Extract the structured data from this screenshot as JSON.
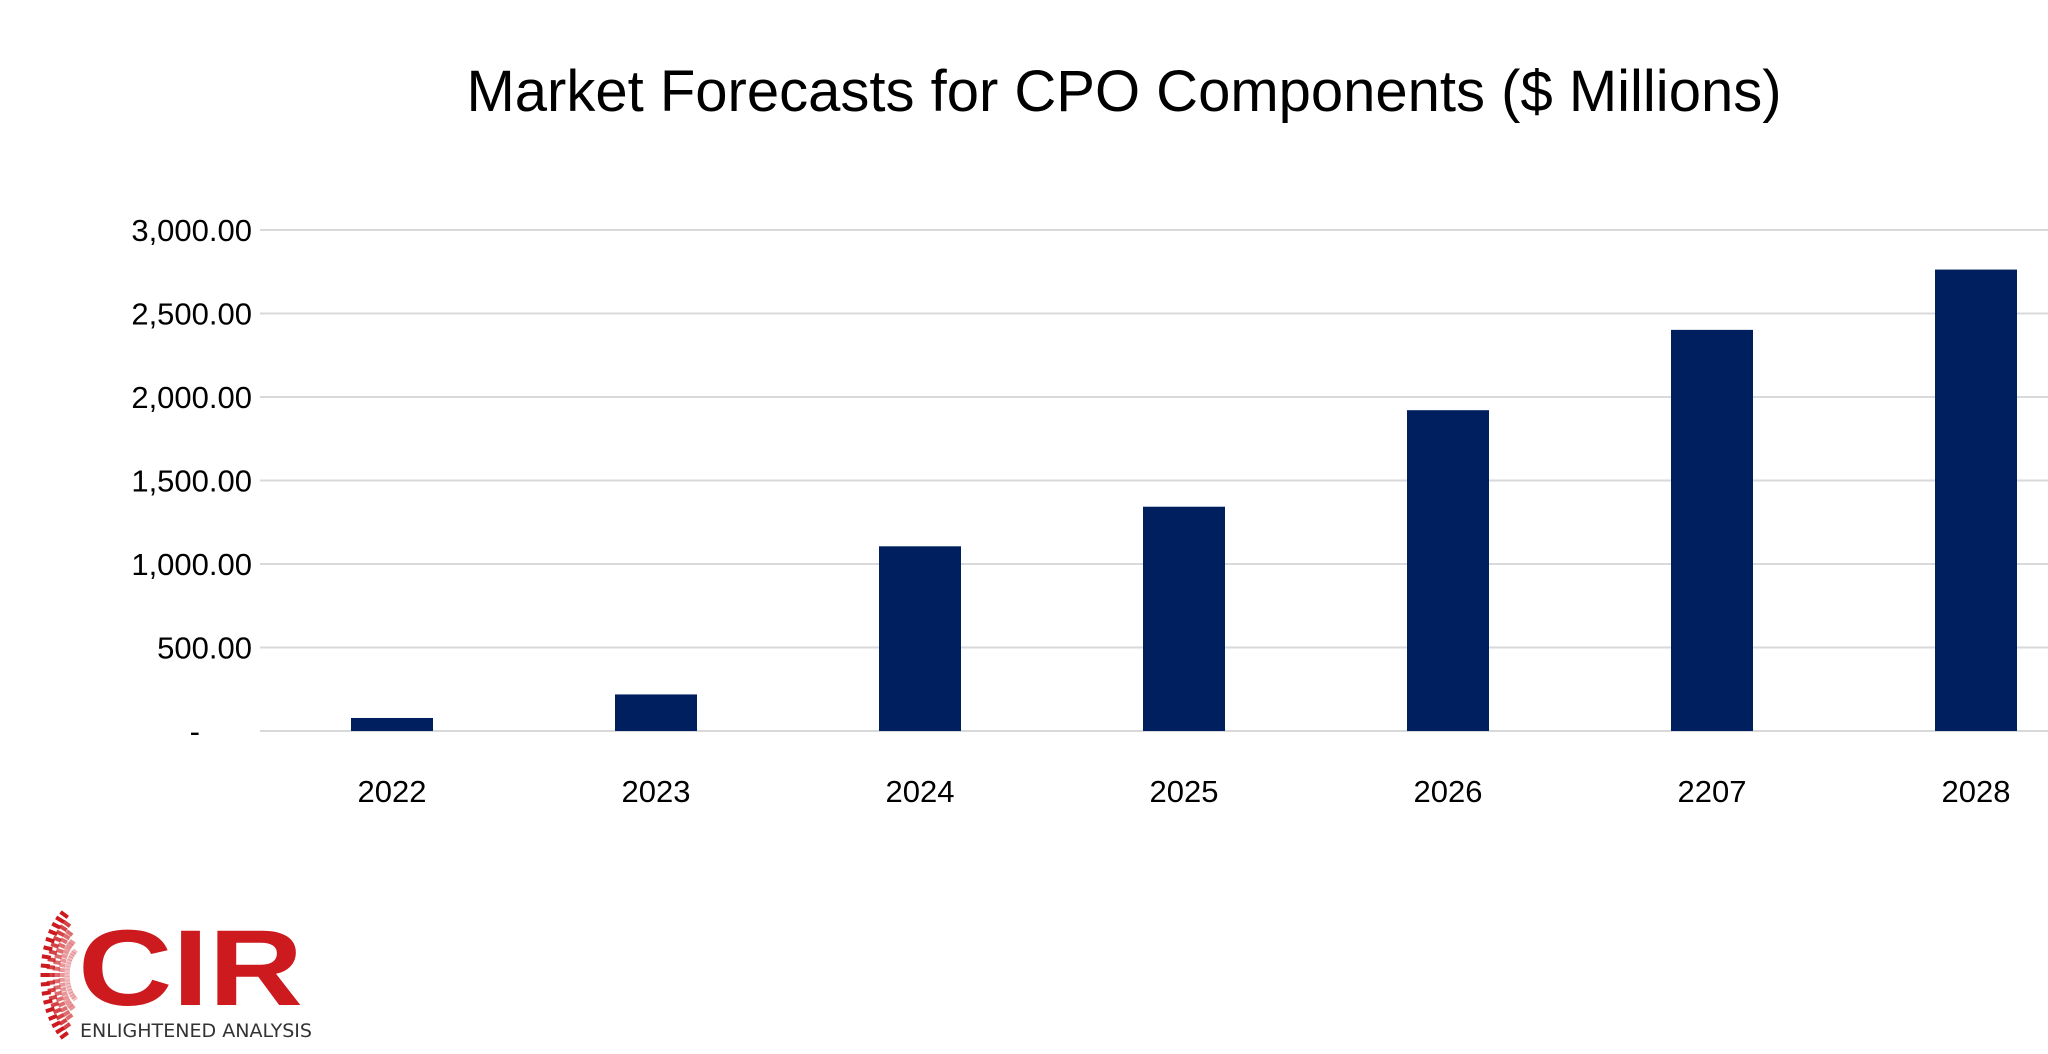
{
  "chart_data": {
    "type": "bar",
    "title": "Market Forecasts for CPO Components ($ Millions)",
    "categories": [
      "2022",
      "2023",
      "2024",
      "2025",
      "2026",
      "2207",
      "2028"
    ],
    "values": [
      78,
      219,
      1106,
      1343,
      1921,
      2402,
      2763
    ],
    "ylim": [
      0,
      3000
    ],
    "yticks": [
      0,
      500,
      1000,
      1500,
      2000,
      2500,
      3000
    ],
    "ytick_labels": [
      "-",
      "500.00",
      "1,000.00",
      "1,500.00",
      "2,000.00",
      "2,500.00",
      "3,000.00"
    ],
    "xlabel": "",
    "ylabel": "",
    "grid": true,
    "bar_color": "#001f5f",
    "grid_color": "#d9d9d9"
  },
  "logo": {
    "name": "CIR",
    "tagline": "ENLIGHTENED ANALYSIS",
    "color": "#cc1a1f"
  }
}
